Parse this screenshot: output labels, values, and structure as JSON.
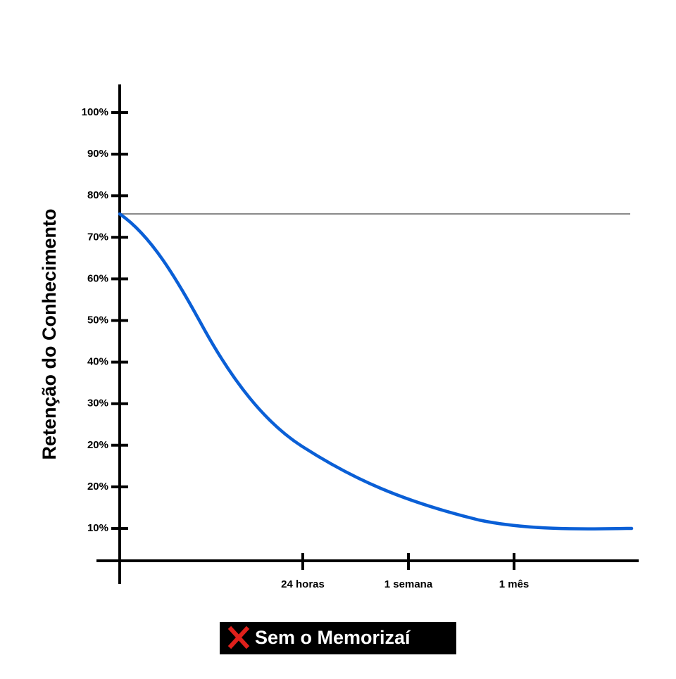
{
  "y_axis": {
    "title": "Retenção do Conhecimento",
    "labels": [
      "100%",
      "90%",
      "80%",
      "70%",
      "60%",
      "50%",
      "40%",
      "30%",
      "20%",
      "20%",
      "10%"
    ]
  },
  "x_axis": {
    "labels": [
      "24 horas",
      "1 semana",
      "1 mês"
    ]
  },
  "legend": {
    "label": "Sem o Memorizaí"
  }
}
